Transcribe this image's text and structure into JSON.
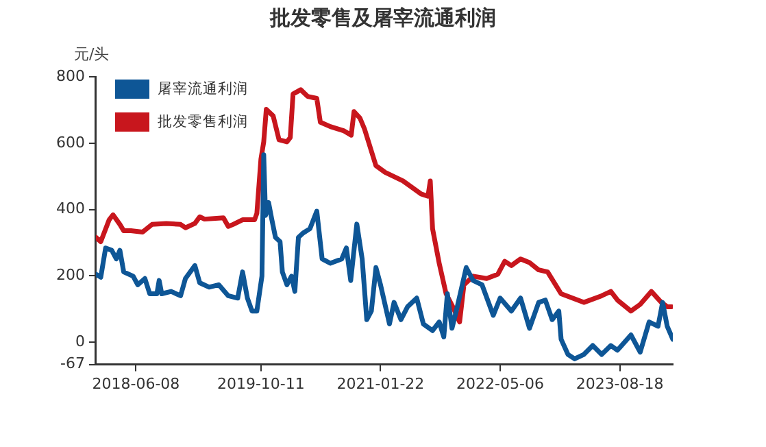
{
  "chart_data": {
    "type": "line",
    "title": "批发零售及屠宰流通利润",
    "ylabel": "元/头",
    "xlim": [
      "2018-01-02",
      "2024-03-13"
    ],
    "xticks": [
      "2018-06-08",
      "2019-10-11",
      "2021-01-22",
      "2022-05-06",
      "2023-08-18"
    ],
    "ylim": [
      -67,
      800
    ],
    "yticks": [
      -67,
      0,
      200,
      400,
      600,
      800
    ],
    "grid": false,
    "legend": "top left",
    "marker": "none",
    "line_style": "solid",
    "series": [
      {
        "name": "屠宰流通利润",
        "color": "#0e5696",
        "x": [
          "2018-01-02",
          "2018-01-21",
          "2018-02-09",
          "2018-03-05",
          "2018-03-23",
          "2018-04-06",
          "2018-04-21",
          "2018-05-28",
          "2018-06-15",
          "2018-07-13",
          "2018-08-01",
          "2018-08-29",
          "2018-09-07",
          "2018-09-17",
          "2018-10-24",
          "2018-11-30",
          "2018-12-19",
          "2019-01-25",
          "2019-02-13",
          "2019-03-22",
          "2019-04-29",
          "2019-06-05",
          "2019-07-12",
          "2019-07-31",
          "2019-08-19",
          "2019-09-06",
          "2019-09-25",
          "2019-10-15",
          "2019-10-22",
          "2019-10-29",
          "2019-11-10",
          "2019-11-23",
          "2019-12-07",
          "2019-12-25",
          "2020-01-03",
          "2020-01-21",
          "2020-02-08",
          "2020-02-21",
          "2020-03-06",
          "2020-03-24",
          "2020-04-20",
          "2020-05-17",
          "2020-06-07",
          "2020-07-09",
          "2020-08-23",
          "2020-09-10",
          "2020-09-27",
          "2020-10-21",
          "2020-11-11",
          "2020-11-29",
          "2020-12-17",
          "2021-01-04",
          "2021-01-22",
          "2021-02-26",
          "2021-03-16",
          "2021-04-12",
          "2021-05-08",
          "2021-06-13",
          "2021-07-09",
          "2021-08-14",
          "2021-09-09",
          "2021-09-27",
          "2021-10-11",
          "2021-10-29",
          "2021-11-15",
          "2021-12-24",
          "2022-01-20",
          "2022-02-24",
          "2022-04-09",
          "2022-05-06",
          "2022-06-19",
          "2022-07-25",
          "2022-08-29",
          "2022-10-04",
          "2022-10-30",
          "2022-11-26",
          "2022-12-22",
          "2022-12-31",
          "2023-01-27",
          "2023-02-22",
          "2023-03-30",
          "2023-05-04",
          "2023-06-08",
          "2023-07-14",
          "2023-08-09",
          "2023-10-01",
          "2023-11-06",
          "2023-12-11",
          "2024-01-15",
          "2024-02-02",
          "2024-02-20",
          "2024-03-13"
        ],
        "values": [
          205,
          196,
          284,
          277,
          251,
          277,
          212,
          199,
          173,
          192,
          146,
          146,
          186,
          146,
          153,
          140,
          192,
          231,
          179,
          166,
          173,
          140,
          133,
          212,
          133,
          94,
          94,
          199,
          565,
          382,
          421,
          369,
          316,
          303,
          212,
          173,
          199,
          153,
          316,
          329,
          342,
          395,
          251,
          238,
          251,
          284,
          186,
          356,
          251,
          68,
          94,
          225,
          173,
          55,
          120,
          68,
          107,
          133,
          55,
          35,
          61,
          16,
          146,
          42,
          94,
          225,
          186,
          173,
          81,
          133,
          94,
          133,
          42,
          120,
          127,
          68,
          94,
          9,
          -37,
          -50,
          -37,
          -10,
          -37,
          -10,
          -24,
          22,
          -30,
          61,
          48,
          120,
          48,
          9
        ]
      },
      {
        "name": "批发零售利润",
        "color": "#c8161d",
        "x": [
          "2018-01-02",
          "2018-01-21",
          "2018-02-23",
          "2018-03-10",
          "2018-04-06",
          "2018-04-21",
          "2018-05-19",
          "2018-07-04",
          "2018-08-10",
          "2018-10-05",
          "2018-11-30",
          "2018-12-19",
          "2019-01-25",
          "2019-02-13",
          "2019-03-04",
          "2019-05-17",
          "2019-06-05",
          "2019-06-24",
          "2019-07-31",
          "2019-09-16",
          "2019-09-25",
          "2019-10-11",
          "2019-10-22",
          "2019-11-01",
          "2019-11-28",
          "2019-12-21",
          "2020-01-21",
          "2020-02-03",
          "2020-02-14",
          "2020-03-15",
          "2020-04-11",
          "2020-05-17",
          "2020-05-31",
          "2020-07-09",
          "2020-09-01",
          "2020-09-29",
          "2020-10-10",
          "2020-11-02",
          "2020-11-20",
          "2021-01-04",
          "2021-02-09",
          "2021-04-20",
          "2021-06-30",
          "2021-07-27",
          "2021-08-05",
          "2021-08-14",
          "2021-09-09",
          "2021-10-06",
          "2021-11-01",
          "2021-11-28",
          "2021-12-15",
          "2022-01-20",
          "2022-03-14",
          "2022-04-27",
          "2022-05-24",
          "2022-06-19",
          "2022-07-25",
          "2022-08-29",
          "2022-10-04",
          "2022-11-08",
          "2022-12-31",
          "2023-03-30",
          "2023-06-08",
          "2023-07-14",
          "2023-08-09",
          "2023-10-01",
          "2023-11-06",
          "2023-12-20",
          "2024-01-28",
          "2024-02-20",
          "2024-03-08"
        ],
        "values": [
          316,
          303,
          369,
          384,
          355,
          336,
          336,
          332,
          355,
          358,
          355,
          345,
          358,
          378,
          371,
          375,
          349,
          355,
          369,
          369,
          388,
          552,
          604,
          702,
          682,
          610,
          604,
          617,
          748,
          761,
          741,
          735,
          663,
          650,
          637,
          624,
          695,
          676,
          643,
          532,
          512,
          486,
          447,
          440,
          486,
          342,
          238,
          146,
          107,
          61,
          173,
          199,
          192,
          205,
          244,
          231,
          251,
          240,
          218,
          212,
          146,
          120,
          140,
          153,
          127,
          94,
          114,
          153,
          120,
          107,
          107
        ]
      }
    ]
  }
}
